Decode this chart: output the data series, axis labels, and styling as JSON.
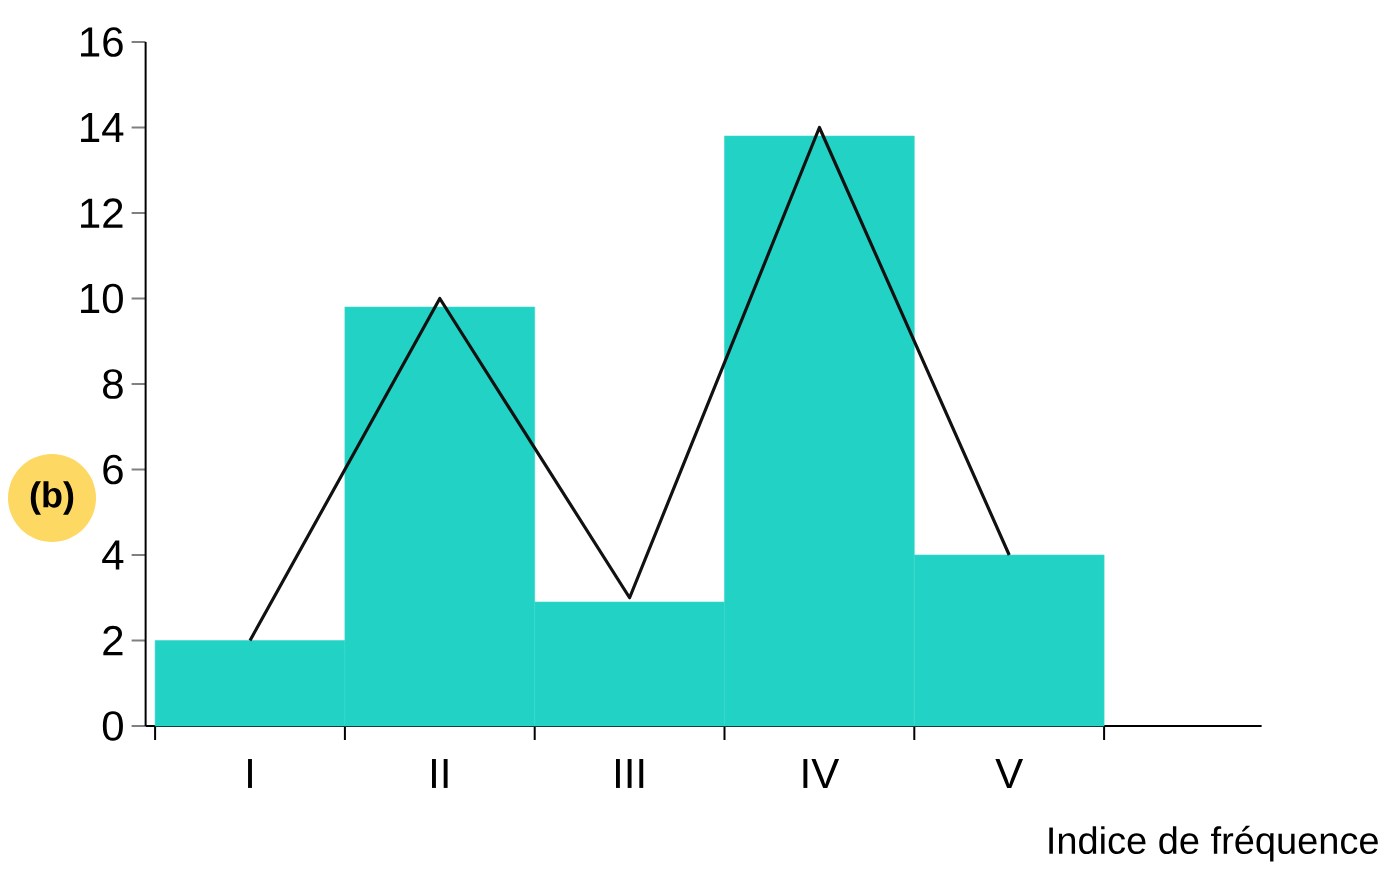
{
  "chart_data": {
    "type": "bar",
    "categories": [
      "I",
      "II",
      "III",
      "IV",
      "V"
    ],
    "series": [
      {
        "color": "#22d3c5",
        "values": [
          2,
          9.8,
          2.9,
          13.8,
          4
        ]
      },
      {
        "type": "line",
        "color": "#111111",
        "values": [
          2,
          10,
          3,
          14,
          4
        ]
      }
    ],
    "ylim": [
      0,
      16
    ],
    "yticks": [
      0,
      2,
      4,
      6,
      8,
      10,
      12,
      14,
      16
    ],
    "xlabel": "Indice de fréquence",
    "annotations": [
      "(b)"
    ]
  }
}
